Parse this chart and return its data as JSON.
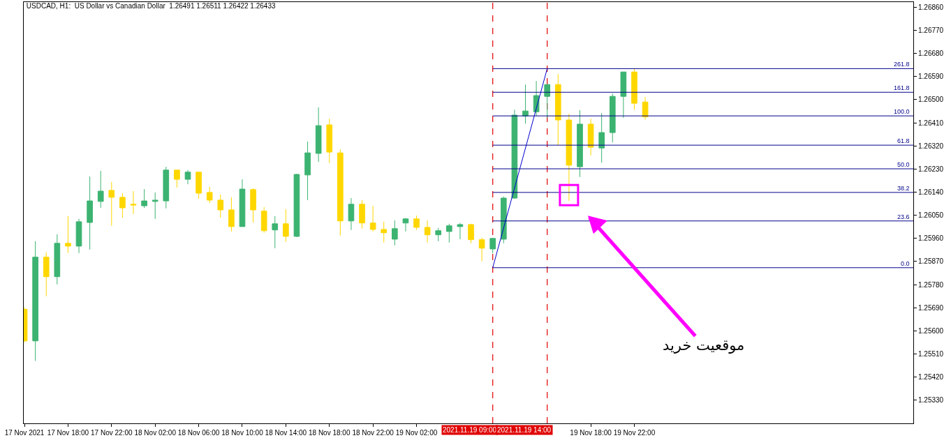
{
  "chart_data": {
    "type": "candlestick",
    "title": "USDCAD, H1:  US Dollar vs Canadian Dollar  1.26491 1.26511 1.26422 1.26433",
    "x": [
      "2021-11-17T14:00",
      "2021-11-17T15:00",
      "2021-11-17T16:00",
      "2021-11-17T17:00",
      "2021-11-17T18:00",
      "2021-11-17T19:00",
      "2021-11-17T20:00",
      "2021-11-17T21:00",
      "2021-11-17T22:00",
      "2021-11-17T23:00",
      "2021-11-18T00:00",
      "2021-11-18T01:00",
      "2021-11-18T02:00",
      "2021-11-18T03:00",
      "2021-11-18T04:00",
      "2021-11-18T05:00",
      "2021-11-18T06:00",
      "2021-11-18T07:00",
      "2021-11-18T08:00",
      "2021-11-18T09:00",
      "2021-11-18T10:00",
      "2021-11-18T11:00",
      "2021-11-18T12:00",
      "2021-11-18T13:00",
      "2021-11-18T14:00",
      "2021-11-18T15:00",
      "2021-11-18T16:00",
      "2021-11-18T17:00",
      "2021-11-18T18:00",
      "2021-11-18T19:00",
      "2021-11-18T20:00",
      "2021-11-18T21:00",
      "2021-11-18T22:00",
      "2021-11-18T23:00",
      "2021-11-19T00:00",
      "2021-11-19T01:00",
      "2021-11-19T02:00",
      "2021-11-19T03:00",
      "2021-11-19T04:00",
      "2021-11-19T05:00",
      "2021-11-19T06:00",
      "2021-11-19T07:00",
      "2021-11-19T08:00",
      "2021-11-19T09:00",
      "2021-11-19T10:00",
      "2021-11-19T11:00",
      "2021-11-19T12:00",
      "2021-11-19T13:00",
      "2021-11-19T14:00",
      "2021-11-19T15:00",
      "2021-11-19T16:00",
      "2021-11-19T17:00",
      "2021-11-19T18:00",
      "2021-11-19T19:00",
      "2021-11-19T20:00",
      "2021-11-19T21:00",
      "2021-11-19T22:00",
      "2021-11-19T23:00"
    ],
    "ohlc": [
      [
        1.25684,
        1.25692,
        1.25556,
        1.25561
      ],
      [
        1.25561,
        1.25949,
        1.25483,
        1.25887
      ],
      [
        1.25887,
        1.25906,
        1.25735,
        1.25811
      ],
      [
        1.25811,
        1.25976,
        1.25781,
        1.25941
      ],
      [
        1.25941,
        1.26047,
        1.25903,
        1.2593
      ],
      [
        1.2593,
        1.26036,
        1.25903,
        1.26025
      ],
      [
        1.26022,
        1.26201,
        1.25917,
        1.26106
      ],
      [
        1.26104,
        1.26223,
        1.26079,
        1.26144
      ],
      [
        1.26147,
        1.2618,
        1.26009,
        1.2612
      ],
      [
        1.2612,
        1.26136,
        1.26041,
        1.26079
      ],
      [
        1.26093,
        1.26144,
        1.26055,
        1.2609
      ],
      [
        1.26087,
        1.26152,
        1.26079,
        1.26106
      ],
      [
        1.26104,
        1.26139,
        1.26036,
        1.26109
      ],
      [
        1.26106,
        1.26239,
        1.26077,
        1.26226
      ],
      [
        1.26226,
        1.26226,
        1.26158,
        1.2619
      ],
      [
        1.2619,
        1.26226,
        1.26171,
        1.26218
      ],
      [
        1.26218,
        1.26218,
        1.26114,
        1.26136
      ],
      [
        1.26139,
        1.26161,
        1.26098,
        1.26109
      ],
      [
        1.26109,
        1.26131,
        1.26041,
        1.26071
      ],
      [
        1.26071,
        1.2612,
        1.25987,
        1.26006
      ],
      [
        1.26006,
        1.2619,
        1.26006,
        1.26152
      ],
      [
        1.2615,
        1.26155,
        1.26022,
        1.26071
      ],
      [
        1.26066,
        1.26082,
        1.25982,
        1.2599
      ],
      [
        1.25993,
        1.26047,
        1.25922,
        1.26017
      ],
      [
        1.26017,
        1.26074,
        1.25946,
        1.25968
      ],
      [
        1.25968,
        1.26212,
        1.25965,
        1.26209
      ],
      [
        1.26207,
        1.26337,
        1.26109,
        1.26293
      ],
      [
        1.26291,
        1.2647,
        1.26258,
        1.26399
      ],
      [
        1.26402,
        1.26426,
        1.26253,
        1.26296
      ],
      [
        1.26293,
        1.26307,
        1.25971,
        1.26028
      ],
      [
        1.26028,
        1.26117,
        1.25993,
        1.26093
      ],
      [
        1.26093,
        1.26109,
        1.25998,
        1.2602
      ],
      [
        1.2602,
        1.26087,
        1.25987,
        1.25995
      ],
      [
        1.25995,
        1.26025,
        1.25944,
        1.25982
      ],
      [
        1.25957,
        1.2603,
        1.25933,
        1.25998
      ],
      [
        1.2602,
        1.26039,
        1.25987,
        1.26036
      ],
      [
        1.26036,
        1.26049,
        1.25993,
        1.26003
      ],
      [
        1.26003,
        1.2603,
        1.25944,
        1.25974
      ],
      [
        1.25974,
        1.26001,
        1.25949,
        1.2599
      ],
      [
        1.25987,
        1.26017,
        1.25944,
        1.26009
      ],
      [
        1.26006,
        1.2602,
        1.25957,
        1.26014
      ],
      [
        1.26014,
        1.26017,
        1.25941,
        1.25955
      ],
      [
        1.25955,
        1.25963,
        1.25871,
        1.25922
      ],
      [
        1.25919,
        1.2596,
        1.25903,
        1.2596
      ],
      [
        1.25957,
        1.26123,
        1.25941,
        1.26117
      ],
      [
        1.26117,
        1.26461,
        1.26114,
        1.2644
      ],
      [
        1.26437,
        1.26559,
        1.26407,
        1.26456
      ],
      [
        1.26453,
        1.26573,
        1.26437,
        1.26516
      ],
      [
        1.26513,
        1.26559,
        1.26429,
        1.26559
      ],
      [
        1.26559,
        1.266,
        1.26323,
        1.26421
      ],
      [
        1.26421,
        1.26445,
        1.26106,
        1.26245
      ],
      [
        1.26239,
        1.26459,
        1.26199,
        1.26405
      ],
      [
        1.26405,
        1.26426,
        1.26283,
        1.26315
      ],
      [
        1.26312,
        1.26448,
        1.26255,
        1.26372
      ],
      [
        1.26372,
        1.26524,
        1.26334,
        1.26513
      ],
      [
        1.26513,
        1.26608,
        1.26429,
        1.26608
      ],
      [
        1.26608,
        1.26621,
        1.26461,
        1.26486
      ],
      [
        1.26491,
        1.26511,
        1.26422,
        1.26433
      ]
    ],
    "colors": [
      "#ffd700",
      "#3cb371",
      "#ffd700",
      "#3cb371",
      "#ffd700",
      "#3cb371",
      "#3cb371",
      "#3cb371",
      "#ffd700",
      "#ffd700",
      "#ffd700",
      "#3cb371",
      "#3cb371",
      "#3cb371",
      "#ffd700",
      "#3cb371",
      "#ffd700",
      "#ffd700",
      "#ffd700",
      "#ffd700",
      "#3cb371",
      "#ffd700",
      "#ffd700",
      "#3cb371",
      "#ffd700",
      "#3cb371",
      "#3cb371",
      "#3cb371",
      "#ffd700",
      "#ffd700",
      "#3cb371",
      "#ffd700",
      "#ffd700",
      "#ffd700",
      "#3cb371",
      "#3cb371",
      "#ffd700",
      "#ffd700",
      "#3cb371",
      "#3cb371",
      "#3cb371",
      "#ffd700",
      "#ffd700",
      "#3cb371",
      "#3cb371",
      "#3cb371",
      "#3cb371",
      "#3cb371",
      "#3cb371",
      "#ffd700",
      "#ffd700",
      "#3cb371",
      "#ffd700",
      "#3cb371",
      "#3cb371",
      "#3cb371",
      "#ffd700",
      "#ffd700"
    ],
    "series": [
      {
        "type": "line",
        "color": "#0000cd",
        "x": [
          "2021-11-19T09:00",
          "2021-11-19T14:00"
        ],
        "values": [
          1.25846,
          1.26621
        ]
      },
      {
        "type": "line",
        "name": "261.8",
        "color": "#00008b",
        "x": [
          "2021-11-19T09:00",
          "2021-11-20T23:37"
        ],
        "values": [
          1.26621,
          1.26621
        ]
      },
      {
        "type": "line",
        "name": "161.8",
        "color": "#00008b",
        "x": [
          "2021-11-19T09:00",
          "2021-11-20T23:37"
        ],
        "values": [
          1.26529,
          1.26529
        ]
      },
      {
        "type": "line",
        "name": "100.0",
        "color": "#00008b",
        "x": [
          "2021-11-19T09:00",
          "2021-11-20T23:37"
        ],
        "values": [
          1.26437,
          1.26437
        ]
      },
      {
        "type": "line",
        "name": "61.8",
        "color": "#00008b",
        "x": [
          "2021-11-19T09:00",
          "2021-11-20T23:37"
        ],
        "values": [
          1.26323,
          1.26323
        ]
      },
      {
        "type": "line",
        "name": "50.0",
        "color": "#00008b",
        "x": [
          "2021-11-19T09:00",
          "2021-11-20T23:37"
        ],
        "values": [
          1.26231,
          1.26231
        ]
      },
      {
        "type": "line",
        "name": "38.2",
        "color": "#00008b",
        "x": [
          "2021-11-19T09:00",
          "2021-11-20T23:37"
        ],
        "values": [
          1.26139,
          1.26139
        ]
      },
      {
        "type": "line",
        "name": "23.6",
        "color": "#00008b",
        "x": [
          "2021-11-19T09:00",
          "2021-11-20T23:37"
        ],
        "values": [
          1.26028,
          1.26028
        ]
      },
      {
        "type": "line",
        "name": "0.0",
        "color": "#00008b",
        "x": [
          "2021-11-19T09:00",
          "2021-11-20T23:37"
        ],
        "values": [
          1.25846,
          1.25846
        ]
      }
    ],
    "ref_lines": [
      {
        "axis": "x",
        "value": "2021-11-19T09:00",
        "label": "2021.11.19 09:00",
        "color": "#e00000",
        "line_style": "dashed"
      },
      {
        "axis": "x",
        "value": "2021-11-19T14:00",
        "label": "2021.11.19 14:00",
        "color": "#e00000",
        "line_style": "dashed"
      }
    ],
    "annotations": [
      {
        "text": "موقعیت خرید",
        "x": "2021-11-19T16:00",
        "y": 1.2613
      }
    ],
    "xlim": [
      "2021-11-17T13:56",
      "2021-11-20T23:37"
    ],
    "xticks": [
      {
        "value": "2021-11-17T14:00",
        "label": "17 Nov 2021"
      },
      {
        "value": "2021-11-17T18:00",
        "label": "17 Nov 18:00"
      },
      {
        "value": "2021-11-17T22:00",
        "label": "17 Nov 22:00"
      },
      {
        "value": "2021-11-18T02:00",
        "label": "18 Nov 02:00"
      },
      {
        "value": "2021-11-18T06:00",
        "label": "18 Nov 06:00"
      },
      {
        "value": "2021-11-18T10:00",
        "label": "18 Nov 10:00"
      },
      {
        "value": "2021-11-18T14:00",
        "label": "18 Nov 14:00"
      },
      {
        "value": "2021-11-18T18:00",
        "label": "18 Nov 18:00"
      },
      {
        "value": "2021-11-18T22:00",
        "label": "18 Nov 22:00"
      },
      {
        "value": "2021-11-19T02:00",
        "label": "19 Nov 02:00"
      },
      {
        "value": "2021-11-19T18:00",
        "label": "19 Nov 18:00"
      },
      {
        "value": "2021-11-19T22:00",
        "label": "19 Nov 22:00"
      }
    ],
    "ylim": [
      1.2524,
      1.2688
    ],
    "yticks": [
      {
        "value": 1.2686,
        "label": "1.26860"
      },
      {
        "value": 1.2677,
        "label": "1.26770"
      },
      {
        "value": 1.2668,
        "label": "1.26680"
      },
      {
        "value": 1.2659,
        "label": "1.26590"
      },
      {
        "value": 1.265,
        "label": "1.26500"
      },
      {
        "value": 1.2641,
        "label": "1.26410"
      },
      {
        "value": 1.2632,
        "label": "1.26320"
      },
      {
        "value": 1.2623,
        "label": "1.26230"
      },
      {
        "value": 1.2614,
        "label": "1.26140"
      },
      {
        "value": 1.2605,
        "label": "1.26050"
      },
      {
        "value": 1.2596,
        "label": "1.25960"
      },
      {
        "value": 1.2587,
        "label": "1.25870"
      },
      {
        "value": 1.2578,
        "label": "1.25780"
      },
      {
        "value": 1.2569,
        "label": "1.25690"
      },
      {
        "value": 1.256,
        "label": "1.25600"
      },
      {
        "value": 1.2551,
        "label": "1.25510"
      },
      {
        "value": 1.2542,
        "label": "1.25420"
      },
      {
        "value": 1.2533,
        "label": "1.25330"
      }
    ],
    "grid": false,
    "marker": "none"
  }
}
